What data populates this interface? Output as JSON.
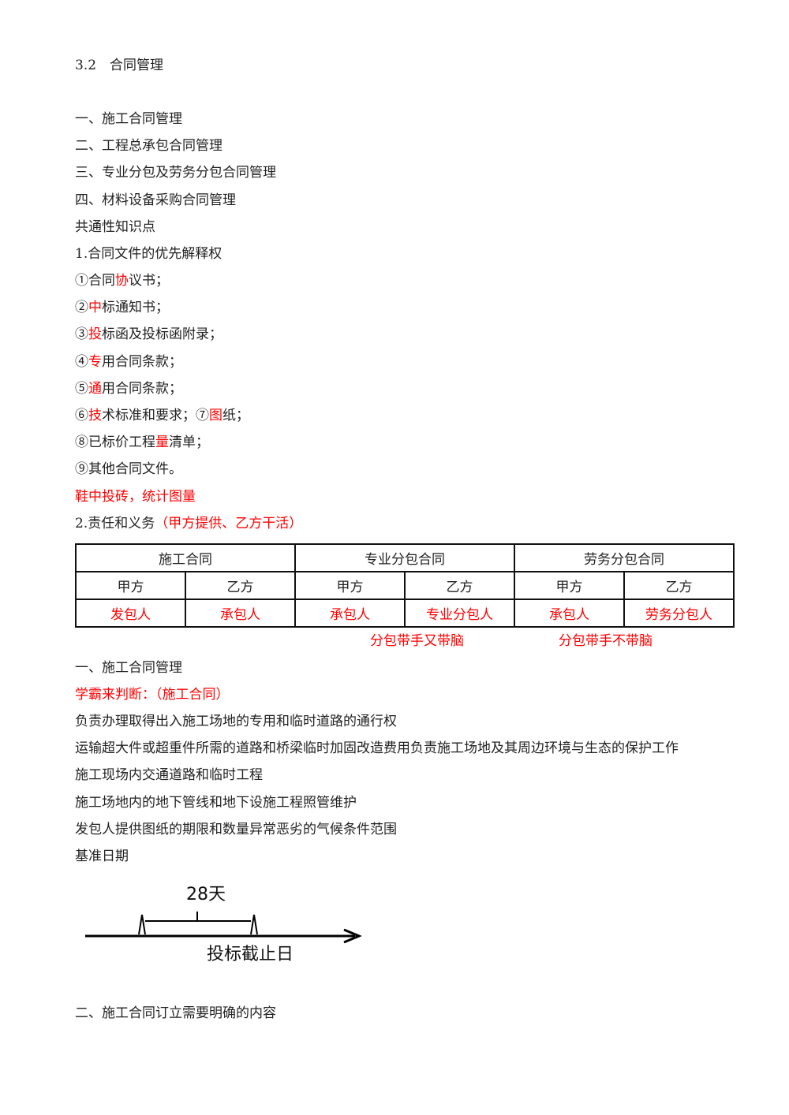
{
  "heading": "3.2　合同管理",
  "outline": [
    "一、施工合同管理",
    "二、工程总承包合同管理",
    "三、专业分包及劳务分包合同管理",
    "四、材料设备采购合同管理"
  ],
  "common": {
    "title": "共通性知识点",
    "subtitle": "1.合同文件的优先解释权",
    "items": [
      [
        "①合同",
        {
          "text": "协",
          "color": "#ff0000"
        },
        "议书；"
      ],
      [
        "②",
        {
          "text": "中",
          "color": "#ff0000"
        },
        "标通知书；"
      ],
      [
        "③",
        {
          "text": "投",
          "color": "#ff0000"
        },
        "标函及投标函附录；"
      ],
      [
        "④",
        {
          "text": "专",
          "color": "#ff0000"
        },
        "用合同条款；"
      ],
      [
        "⑤",
        {
          "text": "通",
          "color": "#ff0000"
        },
        "用合同条款；"
      ],
      [
        "⑥",
        {
          "text": "技",
          "color": "#ff0000"
        },
        "术标准和要求；⑦",
        {
          "text": "图",
          "color": "#ff0000"
        },
        "纸；"
      ],
      [
        "⑧已标价工程",
        {
          "text": "量",
          "color": "#ff0000"
        },
        "清单；"
      ],
      [
        "⑨其他合同文件。"
      ],
      [
        {
          "text": "鞋中投砖，统计图量",
          "color": "#ff0000"
        }
      ],
      [
        "2.责任和义务",
        {
          "text": "（甲方提供、乙方干活）",
          "color": "#ff0000"
        }
      ]
    ]
  },
  "table": {
    "header": [
      "施工合同",
      "专业分包合同",
      "劳务分包合同"
    ],
    "subheader": [
      "甲方",
      "乙方",
      "甲方",
      "乙方",
      "甲方",
      "乙方"
    ],
    "row": [
      "发包人",
      "承包人",
      "承包人",
      "专业分包人",
      "承包人",
      "劳务分包人"
    ],
    "notes": [
      "分包带手又带脑",
      "分包带手不带脑"
    ]
  },
  "section1": {
    "title": "一、施工合同管理",
    "prompt": "学霸来判断：（施工合同）",
    "lines": [
      "负责办理取得出入施工场地的专用和临时道路的通行权",
      "运输超大件或超重件所需的道路和桥梁临时加固改造费用负责施工场地及其周边环境与生态的保护工作",
      "施工现场内交通道路和临时工程",
      "施工场地内的地下管线和地下设施工程照管维护",
      "发包人提供图纸的期限和数量异常恶劣的气候条件范围",
      "基准日期"
    ],
    "diagram": {
      "duration": "28天",
      "deadline": "投标截止日"
    }
  },
  "section2": {
    "title": "二、施工合同订立需要明确的内容"
  }
}
